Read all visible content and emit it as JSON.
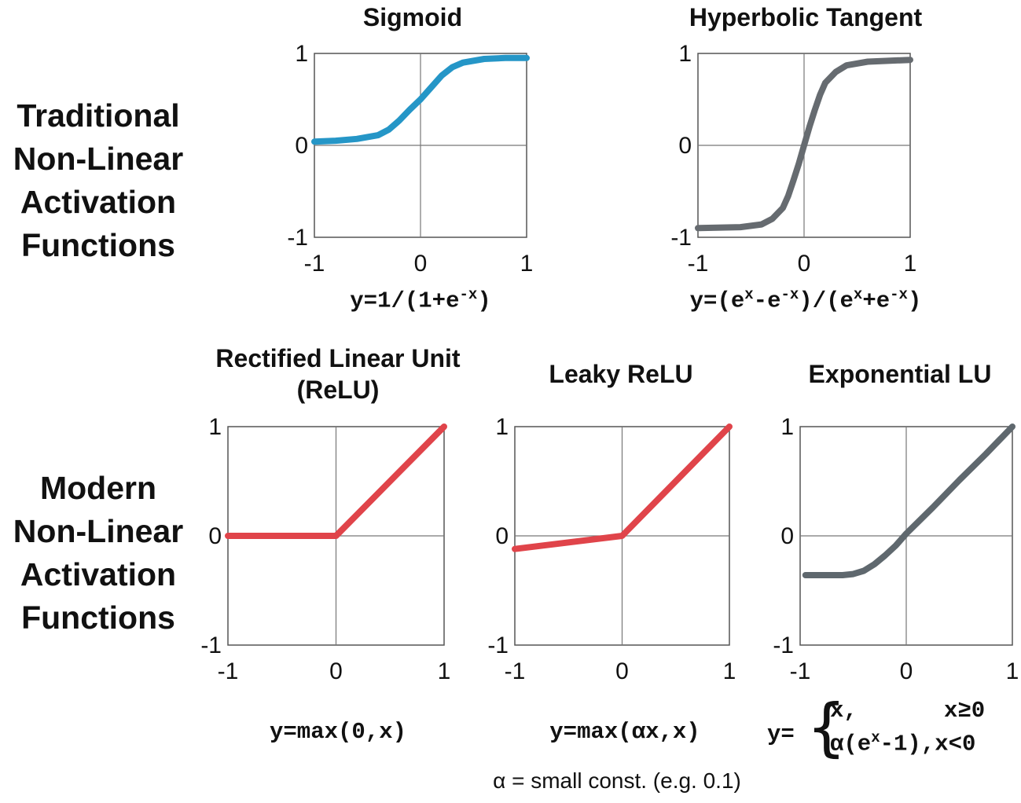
{
  "row_labels": {
    "traditional": [
      "Traditional",
      "Non-Linear",
      "Activation",
      "Functions"
    ],
    "modern": [
      "Modern",
      "Non-Linear",
      "Activation",
      "Functions"
    ]
  },
  "note": "α = small const. (e.g. 0.1)",
  "chart_data": [
    {
      "type": "line",
      "title": "Sigmoid",
      "formula": {
        "prefix": "y=1/(1+e",
        "sup": "-x",
        "suffix": ")"
      },
      "xlim": [
        -1,
        1
      ],
      "ylim": [
        -1,
        1
      ],
      "xticks": [
        "-1",
        "0",
        "1"
      ],
      "yticks": [
        "1",
        "0",
        "-1"
      ],
      "grid": true,
      "color": "#2596c7",
      "x": [
        -1,
        -0.8,
        -0.6,
        -0.4,
        -0.3,
        -0.2,
        -0.1,
        0,
        0.1,
        0.2,
        0.3,
        0.4,
        0.6,
        0.8,
        1
      ],
      "y": [
        0.04,
        0.05,
        0.07,
        0.11,
        0.17,
        0.27,
        0.39,
        0.5,
        0.63,
        0.76,
        0.85,
        0.9,
        0.94,
        0.95,
        0.95
      ]
    },
    {
      "type": "line",
      "title": "Hyperbolic Tangent",
      "formula": {
        "prefix": "y=(e",
        "sup": "x",
        "mid1": "-e",
        "sup2": "-x",
        "mid2": ")/(e",
        "sup3": "x",
        "mid3": "+e",
        "sup4": "-x",
        "suffix": ")"
      },
      "xlim": [
        -1,
        1
      ],
      "ylim": [
        -1,
        1
      ],
      "xticks": [
        "-1",
        "0",
        "1"
      ],
      "yticks": [
        "1",
        "0",
        "-1"
      ],
      "grid": true,
      "color": "#666b70",
      "x": [
        -1,
        -0.6,
        -0.4,
        -0.3,
        -0.2,
        -0.15,
        -0.1,
        -0.05,
        0,
        0.05,
        0.1,
        0.15,
        0.2,
        0.3,
        0.4,
        0.6,
        1
      ],
      "y": [
        -0.9,
        -0.89,
        -0.86,
        -0.8,
        -0.68,
        -0.55,
        -0.38,
        -0.2,
        0,
        0.2,
        0.38,
        0.55,
        0.68,
        0.8,
        0.87,
        0.91,
        0.93
      ]
    },
    {
      "type": "line",
      "title_lines": [
        "Rectified Linear Unit",
        "(ReLU)"
      ],
      "formula": {
        "prefix": "y=max(0,x)"
      },
      "xlim": [
        -1,
        1
      ],
      "ylim": [
        -1,
        1
      ],
      "xticks": [
        "-1",
        "0",
        "1"
      ],
      "yticks": [
        "1",
        "0",
        "-1"
      ],
      "grid": true,
      "color": "#e0444a",
      "x": [
        -1,
        0,
        1
      ],
      "y": [
        0,
        0,
        1
      ]
    },
    {
      "type": "line",
      "title": "Leaky ReLU",
      "formula": {
        "prefix": "y=max(αx,x)"
      },
      "xlim": [
        -1,
        1
      ],
      "ylim": [
        -1,
        1
      ],
      "xticks": [
        "-1",
        "0",
        "1"
      ],
      "yticks": [
        "1",
        "0",
        "-1"
      ],
      "grid": true,
      "color": "#e0444a",
      "x": [
        -1,
        0,
        1
      ],
      "y": [
        -0.12,
        0,
        1
      ]
    },
    {
      "type": "line",
      "title": "Exponential LU",
      "formula": {
        "y": "y=",
        "case1": "x,",
        "case1_cond": "x≥0",
        "case2_pre": "α(e",
        "case2_sup": "x",
        "case2_post": "-1),x<0"
      },
      "xlim": [
        -1,
        1
      ],
      "ylim": [
        -1,
        1
      ],
      "xticks": [
        "-1",
        "0",
        "1"
      ],
      "yticks": [
        "1",
        "0",
        "-1"
      ],
      "grid": true,
      "color": "#5f686e",
      "x": [
        -0.95,
        -0.8,
        -0.6,
        -0.5,
        -0.4,
        -0.3,
        -0.2,
        -0.1,
        0,
        0.25,
        0.5,
        0.75,
        1
      ],
      "y": [
        -0.36,
        -0.36,
        -0.36,
        -0.35,
        -0.32,
        -0.26,
        -0.18,
        -0.09,
        0.02,
        0.26,
        0.51,
        0.75,
        1
      ]
    }
  ]
}
